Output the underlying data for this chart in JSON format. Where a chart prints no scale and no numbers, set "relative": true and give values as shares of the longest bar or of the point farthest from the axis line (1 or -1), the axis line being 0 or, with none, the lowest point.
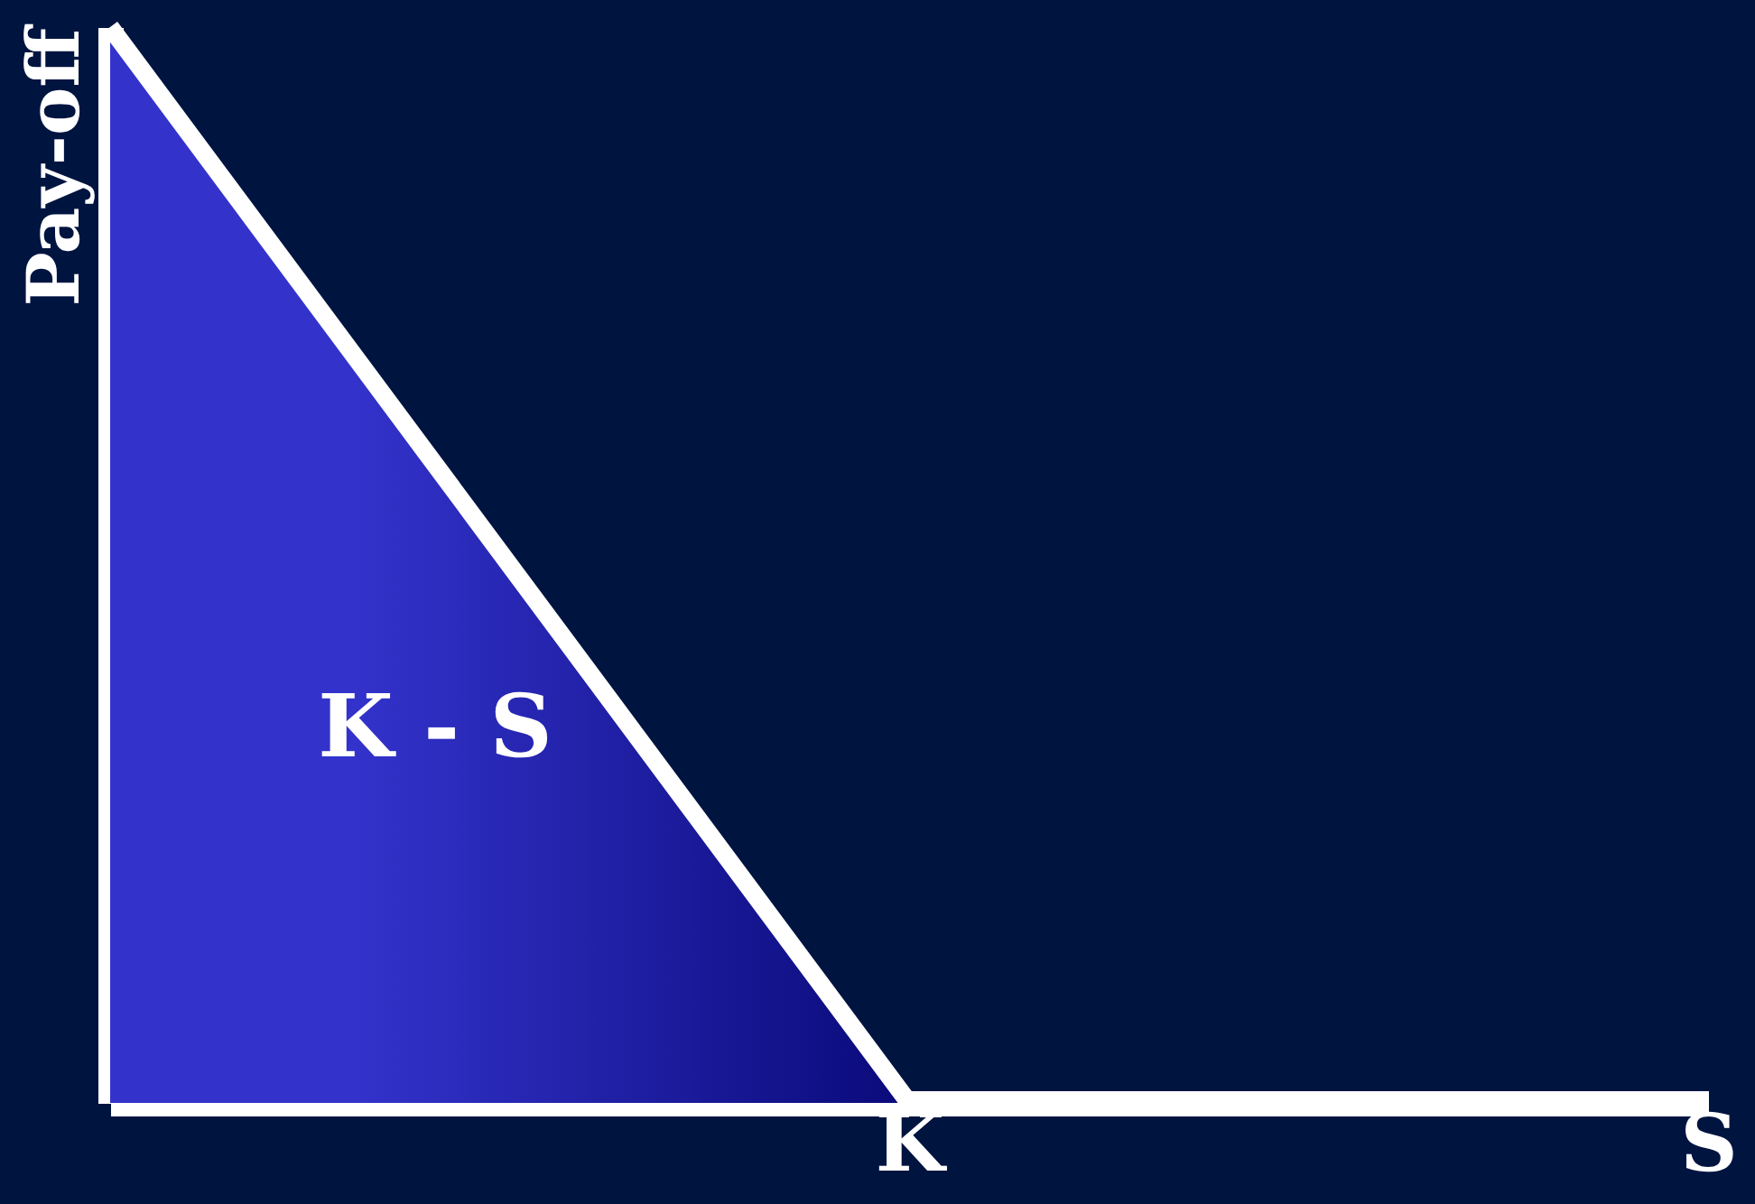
{
  "chart_data": {
    "type": "area",
    "relative": true,
    "categories": [
      null,
      "K",
      "S"
    ],
    "series": [
      {
        "color": "#3333cc",
        "values": [
          1,
          0,
          0
        ]
      }
    ],
    "ylabel": "Pay-off",
    "annotations": [
      "K - S"
    ],
    "grid": false
  }
}
